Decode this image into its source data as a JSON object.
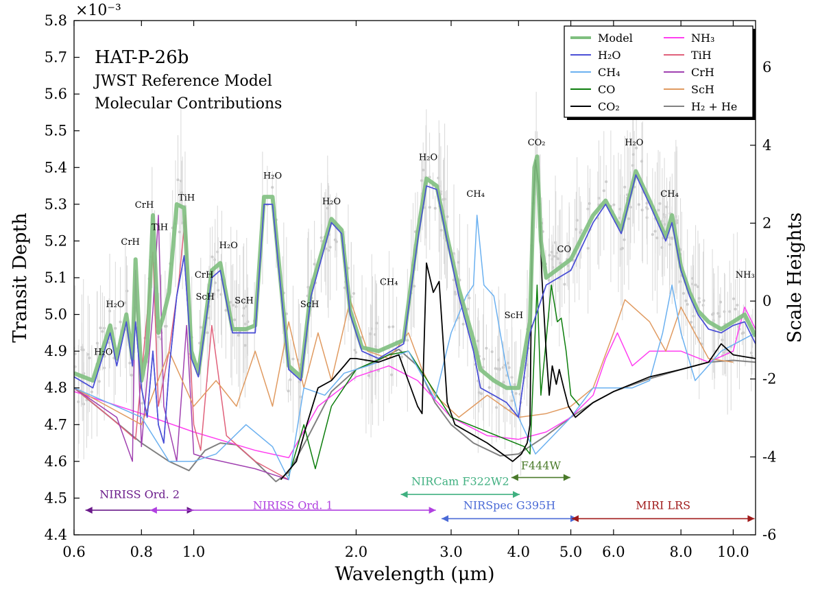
{
  "chart_data": {
    "type": "line",
    "title": "HAT-P-26b",
    "subtitle_lines": [
      "JWST Reference Model",
      "Molecular Contributions"
    ],
    "xlabel": "Wavelength (μm)",
    "ylabel": "Transit Depth",
    "y2label": "Scale Heights",
    "y_exponent_label": "×10⁻³",
    "xscale": "log",
    "xlim": [
      0.6,
      11.0
    ],
    "ylim": [
      4.4,
      5.8
    ],
    "y2lim": [
      -6.0,
      7.2
    ],
    "x_ticks": [
      0.6,
      0.8,
      1.0,
      2.0,
      3.0,
      4.0,
      5.0,
      6.0,
      8.0,
      10.0
    ],
    "x_tick_labels": [
      "0.6",
      "0.8",
      "1.0",
      "2.0",
      "3.0",
      "4.0",
      "5.0",
      "6.0",
      "8.0",
      "10.0"
    ],
    "y_ticks": [
      4.4,
      4.5,
      4.6,
      4.7,
      4.8,
      4.9,
      5.0,
      5.1,
      5.2,
      5.3,
      5.4,
      5.5,
      5.6,
      5.7,
      5.8
    ],
    "y_tick_labels": [
      "4.4",
      "4.5",
      "4.6",
      "4.7",
      "4.8",
      "4.9",
      "5.0",
      "5.1",
      "5.2",
      "5.3",
      "5.4",
      "5.5",
      "5.6",
      "5.7",
      "5.8"
    ],
    "y2_ticks": [
      -6,
      -4,
      -2,
      0,
      2,
      4,
      6
    ],
    "y2_tick_labels": [
      "-6",
      "-4",
      "-2",
      "0",
      "2",
      "4",
      "6"
    ],
    "legend_position": "top-right",
    "legend": [
      {
        "key": "model",
        "label": "Model",
        "color": "#7fbf7f",
        "col": 0
      },
      {
        "key": "h2o",
        "label": "H₂O",
        "color": "#4a4fd6",
        "col": 0
      },
      {
        "key": "ch4",
        "label": "CH₄",
        "color": "#6ab0f0",
        "col": 0
      },
      {
        "key": "co",
        "label": "CO",
        "color": "#0b7d0b",
        "col": 0
      },
      {
        "key": "co2",
        "label": "CO₂",
        "color": "#000000",
        "col": 0
      },
      {
        "key": "nh3",
        "label": "NH₃",
        "color": "#ff3ef0",
        "col": 1
      },
      {
        "key": "tih",
        "label": "TiH",
        "color": "#e0607a",
        "col": 1
      },
      {
        "key": "crh",
        "label": "CrH",
        "color": "#a040b0",
        "col": 1
      },
      {
        "key": "sch",
        "label": "ScH",
        "color": "#e09a60",
        "col": 1
      },
      {
        "key": "h2he",
        "label": "H₂ + He",
        "color": "#808080",
        "col": 1
      }
    ],
    "series": [
      {
        "name": "H₂ + He",
        "key": "h2he",
        "color": "#808080",
        "width": 2.0,
        "x": [
          0.6,
          0.7,
          0.8,
          0.9,
          0.98,
          1.05,
          1.12,
          1.2,
          1.3,
          1.42,
          1.5,
          1.62,
          1.8,
          2.0,
          2.2,
          2.4,
          2.6,
          2.8,
          3.0,
          3.3,
          3.7,
          4.0,
          4.5,
          5.0,
          5.5,
          6.0,
          7.0,
          8.0,
          9.0,
          10.0,
          11.0
        ],
        "y": [
          4.8,
          4.72,
          4.65,
          4.6,
          4.575,
          4.63,
          4.65,
          4.645,
          4.6,
          4.545,
          4.57,
          4.66,
          4.79,
          4.85,
          4.875,
          4.905,
          4.86,
          4.76,
          4.7,
          4.65,
          4.615,
          4.62,
          4.67,
          4.72,
          4.76,
          4.79,
          4.825,
          4.85,
          4.87,
          4.875,
          4.87
        ]
      },
      {
        "name": "NH₃",
        "key": "nh3",
        "color": "#ff3ef0",
        "width": 1.5,
        "x": [
          0.6,
          0.8,
          1.0,
          1.3,
          1.5,
          1.7,
          2.0,
          2.3,
          2.6,
          3.0,
          3.5,
          4.0,
          4.5,
          5.0,
          5.5,
          5.8,
          6.1,
          6.5,
          7.0,
          8.0,
          9.0,
          10.0,
          10.5,
          11.0
        ],
        "y": [
          4.79,
          4.73,
          4.68,
          4.63,
          4.61,
          4.75,
          4.83,
          4.86,
          4.82,
          4.72,
          4.67,
          4.66,
          4.68,
          4.72,
          4.78,
          4.88,
          4.95,
          4.86,
          4.9,
          4.9,
          4.87,
          4.9,
          5.02,
          4.96
        ]
      },
      {
        "name": "TiH",
        "key": "tih",
        "color": "#e0607a",
        "width": 1.5,
        "x": [
          0.6,
          0.7,
          0.78,
          0.84,
          0.86,
          0.9,
          0.94,
          0.965,
          0.98,
          1.0,
          1.03,
          1.08,
          1.15,
          1.3,
          1.5
        ],
        "y": [
          4.8,
          4.72,
          4.66,
          5.17,
          4.75,
          4.9,
          5.1,
          5.27,
          4.95,
          4.7,
          4.63,
          4.97,
          4.67,
          4.6,
          4.55
        ]
      },
      {
        "name": "CrH",
        "key": "crh",
        "color": "#a040b0",
        "width": 1.5,
        "x": [
          0.6,
          0.72,
          0.77,
          0.78,
          0.8,
          0.84,
          0.86,
          0.88,
          0.93,
          0.97,
          1.0,
          1.05,
          1.3,
          1.5
        ],
        "y": [
          4.8,
          4.72,
          4.6,
          5.12,
          4.64,
          5.01,
          5.27,
          4.75,
          4.6,
          4.97,
          4.62,
          4.61,
          4.58,
          4.55
        ]
      },
      {
        "name": "ScH",
        "key": "sch",
        "color": "#e09a60",
        "width": 1.5,
        "x": [
          0.6,
          0.8,
          0.9,
          1.0,
          1.1,
          1.2,
          1.3,
          1.4,
          1.5,
          1.6,
          1.7,
          1.8,
          1.95,
          2.1,
          2.3,
          2.5,
          2.65,
          2.8,
          3.1,
          3.5,
          4.0,
          4.5,
          5.0,
          5.5,
          6.0,
          6.3,
          7.0,
          7.5,
          8.0,
          9.0,
          10.0
        ],
        "y": [
          4.8,
          4.7,
          4.9,
          4.75,
          4.82,
          4.75,
          4.9,
          4.75,
          4.98,
          4.8,
          4.95,
          4.82,
          5.04,
          4.9,
          4.88,
          4.95,
          4.85,
          4.78,
          4.72,
          4.78,
          4.72,
          4.73,
          4.75,
          4.8,
          4.95,
          5.04,
          4.98,
          4.9,
          5.02,
          4.88,
          4.87
        ]
      },
      {
        "name": "CO",
        "key": "co",
        "color": "#0b7d0b",
        "width": 1.5,
        "x": [
          1.5,
          1.6,
          1.68,
          1.8,
          2.0,
          2.3,
          2.5,
          3.0,
          4.1,
          4.2,
          4.28,
          4.33,
          4.4,
          4.5,
          4.6,
          4.72,
          4.8,
          4.9,
          5.0,
          5.2
        ],
        "y": [
          4.56,
          4.7,
          4.58,
          4.75,
          4.85,
          4.89,
          4.9,
          4.72,
          4.64,
          4.62,
          4.9,
          5.08,
          4.78,
          4.93,
          5.08,
          4.98,
          4.99,
          4.9,
          4.78,
          4.75
        ]
      },
      {
        "name": "CH₄",
        "key": "ch4",
        "color": "#6ab0f0",
        "width": 1.5,
        "x": [
          0.6,
          0.8,
          0.9,
          1.0,
          1.1,
          1.25,
          1.4,
          1.5,
          1.6,
          1.75,
          1.9,
          2.1,
          2.3,
          2.5,
          2.8,
          3.0,
          3.2,
          3.3,
          3.35,
          3.45,
          3.6,
          3.8,
          4.0,
          4.3,
          5.0,
          5.5,
          6.5,
          7.0,
          7.4,
          7.7,
          8.0,
          8.5,
          9.5,
          11.0
        ],
        "y": [
          4.8,
          4.72,
          4.6,
          4.6,
          4.62,
          4.7,
          4.64,
          4.55,
          4.8,
          4.78,
          4.84,
          4.86,
          4.88,
          4.9,
          4.77,
          4.95,
          5.05,
          5.08,
          5.27,
          5.08,
          5.05,
          4.85,
          4.72,
          4.62,
          4.72,
          4.8,
          4.8,
          4.82,
          4.95,
          5.08,
          4.95,
          4.82,
          4.9,
          4.95
        ]
      },
      {
        "name": "H₂O",
        "key": "h2o",
        "color": "#4a4fd6",
        "width": 1.6,
        "x": [
          0.6,
          0.65,
          0.7,
          0.72,
          0.75,
          0.77,
          0.78,
          0.8,
          0.82,
          0.84,
          0.86,
          0.88,
          0.9,
          0.93,
          0.96,
          0.99,
          1.02,
          1.08,
          1.12,
          1.18,
          1.25,
          1.3,
          1.35,
          1.4,
          1.5,
          1.58,
          1.65,
          1.8,
          1.88,
          1.95,
          2.05,
          2.2,
          2.45,
          2.6,
          2.7,
          2.82,
          2.95,
          3.1,
          3.3,
          3.4,
          3.6,
          3.8,
          4.0,
          4.2,
          4.5,
          5.0,
          5.5,
          5.8,
          6.2,
          6.6,
          7.0,
          7.5,
          7.7,
          8.0,
          8.3,
          8.6,
          9.0,
          9.5,
          10.0,
          10.5,
          11.0
        ],
        "y": [
          4.83,
          4.8,
          4.95,
          4.86,
          4.98,
          4.86,
          4.98,
          4.8,
          4.72,
          4.9,
          4.7,
          4.65,
          4.85,
          5.05,
          5.16,
          4.88,
          4.83,
          5.1,
          5.12,
          4.95,
          4.95,
          4.95,
          5.3,
          5.3,
          4.85,
          4.82,
          5.05,
          5.25,
          5.22,
          5.0,
          4.9,
          4.88,
          4.92,
          5.2,
          5.35,
          5.34,
          5.2,
          5.05,
          4.9,
          4.8,
          4.78,
          4.76,
          4.72,
          4.95,
          5.08,
          5.12,
          5.25,
          5.3,
          5.22,
          5.38,
          5.3,
          5.2,
          5.25,
          5.12,
          5.05,
          5.0,
          4.96,
          4.95,
          4.97,
          4.98,
          4.92
        ]
      },
      {
        "name": "CO₂",
        "key": "co2",
        "color": "#000000",
        "width": 1.8,
        "x": [
          1.45,
          1.55,
          1.62,
          1.7,
          1.8,
          1.9,
          1.95,
          2.0,
          2.2,
          2.4,
          2.6,
          2.65,
          2.7,
          2.78,
          2.85,
          2.95,
          3.05,
          3.5,
          3.9,
          4.05,
          4.15,
          4.2,
          4.24,
          4.3,
          4.36,
          4.42,
          4.5,
          4.56,
          4.62,
          4.7,
          4.76,
          4.85,
          4.95,
          5.1,
          5.5,
          6.0,
          7.0,
          8.0,
          9.0,
          9.5,
          10.0,
          11.0
        ],
        "y": [
          4.55,
          4.6,
          4.7,
          4.8,
          4.82,
          4.86,
          4.88,
          4.88,
          4.87,
          4.89,
          4.75,
          4.73,
          5.14,
          5.06,
          5.09,
          4.76,
          4.7,
          4.65,
          4.6,
          4.62,
          4.65,
          4.7,
          5.25,
          5.42,
          5.35,
          5.1,
          4.9,
          4.78,
          4.86,
          4.81,
          4.85,
          4.8,
          4.75,
          4.72,
          4.76,
          4.79,
          4.83,
          4.85,
          4.87,
          4.92,
          4.89,
          4.88
        ]
      },
      {
        "name": "Model",
        "key": "model",
        "color": "#7fbf7f",
        "width": 6.0,
        "opacity": 0.9,
        "x": [
          0.6,
          0.65,
          0.7,
          0.72,
          0.75,
          0.77,
          0.78,
          0.8,
          0.82,
          0.84,
          0.86,
          0.88,
          0.9,
          0.93,
          0.96,
          0.99,
          1.02,
          1.08,
          1.12,
          1.18,
          1.25,
          1.3,
          1.35,
          1.4,
          1.5,
          1.58,
          1.65,
          1.8,
          1.88,
          1.95,
          2.05,
          2.2,
          2.45,
          2.6,
          2.7,
          2.82,
          2.95,
          3.1,
          3.3,
          3.4,
          3.6,
          3.8,
          4.0,
          4.2,
          4.28,
          4.33,
          4.4,
          4.5,
          5.0,
          5.5,
          5.8,
          6.2,
          6.6,
          7.0,
          7.5,
          7.7,
          8.0,
          8.3,
          8.6,
          9.0,
          9.5,
          10.0,
          10.5,
          11.0
        ],
        "y": [
          4.84,
          4.82,
          4.97,
          4.88,
          5.0,
          4.88,
          5.15,
          4.82,
          4.9,
          5.27,
          4.95,
          5.0,
          5.06,
          5.3,
          5.29,
          4.9,
          4.84,
          5.12,
          5.14,
          4.96,
          4.96,
          4.97,
          5.32,
          5.32,
          4.86,
          4.83,
          5.07,
          5.26,
          5.23,
          5.01,
          4.91,
          4.9,
          4.93,
          5.22,
          5.37,
          5.35,
          5.21,
          5.07,
          4.93,
          4.85,
          4.82,
          4.8,
          4.8,
          4.98,
          5.4,
          5.43,
          5.2,
          5.1,
          5.15,
          5.27,
          5.31,
          5.23,
          5.39,
          5.31,
          5.21,
          5.27,
          5.13,
          5.06,
          5.01,
          4.98,
          4.96,
          4.98,
          5.0,
          4.94
        ]
      }
    ],
    "feature_labels": [
      {
        "text": "H₂O",
        "x": 0.68,
        "y": 4.89
      },
      {
        "text": "H₂O",
        "x": 0.715,
        "y": 5.02
      },
      {
        "text": "CrH",
        "x": 0.763,
        "y": 5.19
      },
      {
        "text": "CrH",
        "x": 0.81,
        "y": 5.29
      },
      {
        "text": "TiH",
        "x": 0.865,
        "y": 5.23
      },
      {
        "text": "TiH",
        "x": 0.97,
        "y": 5.31
      },
      {
        "text": "CrH",
        "x": 1.045,
        "y": 5.1
      },
      {
        "text": "ScH",
        "x": 1.05,
        "y": 5.04
      },
      {
        "text": "H₂O",
        "x": 1.16,
        "y": 5.18
      },
      {
        "text": "ScH",
        "x": 1.24,
        "y": 5.03
      },
      {
        "text": "H₂O",
        "x": 1.4,
        "y": 5.37
      },
      {
        "text": "ScH",
        "x": 1.64,
        "y": 5.02
      },
      {
        "text": "H₂O",
        "x": 1.8,
        "y": 5.3
      },
      {
        "text": "CH₄",
        "x": 2.3,
        "y": 5.08
      },
      {
        "text": "H₂O",
        "x": 2.72,
        "y": 5.42
      },
      {
        "text": "CH₄",
        "x": 3.33,
        "y": 5.32
      },
      {
        "text": "ScH",
        "x": 3.92,
        "y": 4.99
      },
      {
        "text": "CO₂",
        "x": 4.32,
        "y": 5.46
      },
      {
        "text": "CO",
        "x": 4.86,
        "y": 5.17
      },
      {
        "text": "H₂O",
        "x": 6.55,
        "y": 5.46
      },
      {
        "text": "CH₄",
        "x": 7.62,
        "y": 5.32
      },
      {
        "text": "NH₃",
        "x": 10.52,
        "y": 5.1
      }
    ],
    "instrument_ranges": [
      {
        "label": "NIRISS Ord. 2",
        "x0": 0.63,
        "x1": 1.0,
        "y": 4.467,
        "label_y": 4.5,
        "color": "#6a1a8a"
      },
      {
        "label": "NIRISS Ord. 1",
        "x0": 0.83,
        "x1": 2.81,
        "y": 4.467,
        "label_y": 4.47,
        "color": "#b040e0"
      },
      {
        "label": "NIRCam F322W2",
        "x0": 2.42,
        "x1": 4.02,
        "y": 4.51,
        "label_y": 4.535,
        "color": "#40b080"
      },
      {
        "label": "F444W",
        "x0": 3.88,
        "x1": 4.99,
        "y": 4.556,
        "label_y": 4.578,
        "color": "#4a7a2a"
      },
      {
        "label": "NIRSpec G395H",
        "x0": 2.88,
        "x1": 5.14,
        "y": 4.444,
        "label_y": 4.47,
        "color": "#4a6ad6"
      },
      {
        "label": "MIRI LRS",
        "x0": 5.02,
        "x1": 10.95,
        "y": 4.444,
        "label_y": 4.47,
        "color": "#a01a1a"
      }
    ]
  }
}
